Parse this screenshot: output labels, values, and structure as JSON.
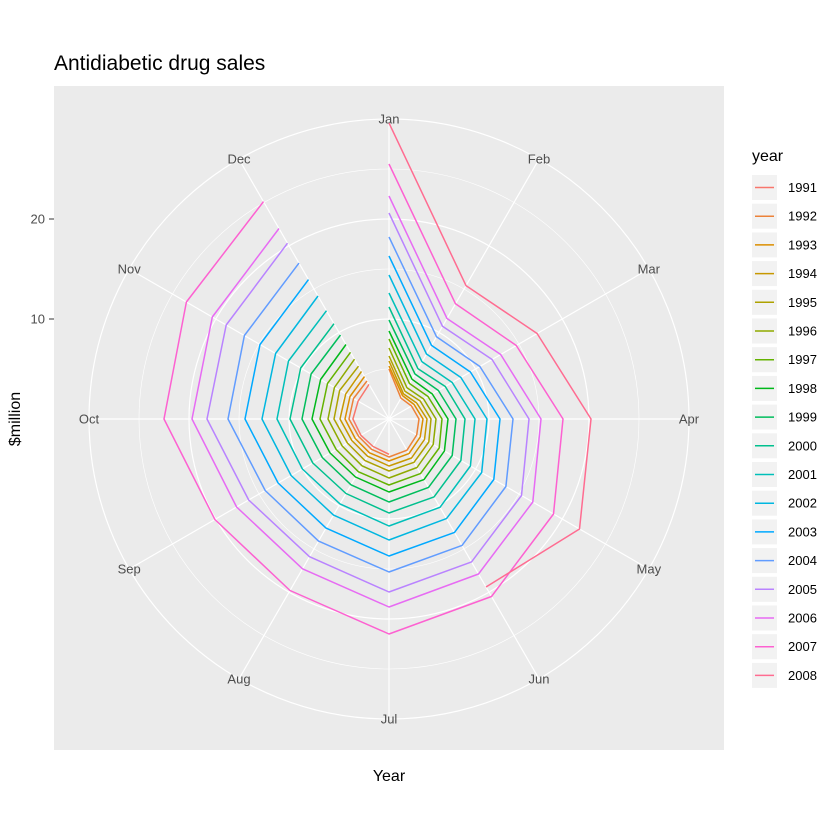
{
  "chart_data": {
    "type": "line",
    "coordinate_system": "polar",
    "title": "Antidiabetic drug sales",
    "xlabel": "Year",
    "ylabel": "$million",
    "categories": [
      "Jan",
      "Feb",
      "Mar",
      "Apr",
      "May",
      "Jun",
      "Jul",
      "Aug",
      "Sep",
      "Oct",
      "Nov",
      "Dec"
    ],
    "radial_ticks": [
      10,
      20
    ],
    "radial_range": [
      0,
      30
    ],
    "grid": true,
    "panel_background": "#ebebeb",
    "grid_color": "#ffffff",
    "legend": {
      "title": "year",
      "position": "right"
    },
    "series": [
      {
        "name": "1991",
        "color": "#F8766D",
        "values": [
          null,
          null,
          null,
          null,
          null,
          null,
          3.53,
          3.18,
          3.25,
          3.61,
          3.57,
          3.99
        ]
      },
      {
        "name": "1992",
        "color": "#EC8239",
        "values": [
          5.0,
          2.4,
          2.6,
          3.0,
          3.2,
          3.6,
          3.8,
          3.5,
          3.5,
          4.0,
          4.1,
          4.4
        ]
      },
      {
        "name": "1993",
        "color": "#DB8E00",
        "values": [
          5.3,
          2.7,
          2.9,
          3.4,
          3.6,
          4.0,
          4.2,
          3.9,
          3.9,
          4.4,
          4.5,
          4.9
        ]
      },
      {
        "name": "1994",
        "color": "#C79800",
        "values": [
          5.8,
          2.9,
          3.2,
          3.8,
          4.1,
          4.5,
          4.7,
          4.3,
          4.3,
          4.9,
          5.0,
          5.5
        ]
      },
      {
        "name": "1995",
        "color": "#AEA200",
        "values": [
          6.3,
          3.2,
          3.6,
          4.2,
          4.6,
          5.0,
          5.2,
          4.8,
          4.8,
          5.5,
          5.7,
          6.1
        ]
      },
      {
        "name": "1996",
        "color": "#8FAA00",
        "values": [
          7.1,
          3.6,
          4.0,
          4.7,
          5.1,
          5.6,
          5.9,
          5.4,
          5.4,
          6.1,
          6.3,
          6.9
        ]
      },
      {
        "name": "1997",
        "color": "#64B200",
        "values": [
          8.0,
          4.1,
          4.5,
          5.3,
          5.8,
          6.3,
          6.6,
          6.1,
          6.1,
          6.9,
          7.1,
          7.7
        ]
      },
      {
        "name": "1998",
        "color": "#00B81B",
        "values": [
          8.8,
          4.6,
          5.0,
          5.9,
          6.4,
          7.0,
          7.3,
          6.7,
          6.8,
          7.7,
          7.9,
          8.6
        ]
      },
      {
        "name": "1999",
        "color": "#00BD5C",
        "values": [
          9.9,
          5.2,
          5.7,
          6.7,
          7.3,
          7.9,
          8.3,
          7.6,
          7.7,
          8.7,
          9.0,
          9.7
        ]
      },
      {
        "name": "2000",
        "color": "#00C08E",
        "values": [
          11.2,
          5.8,
          6.5,
          7.6,
          8.3,
          9.0,
          9.4,
          8.6,
          8.8,
          9.9,
          10.2,
          11.0
        ]
      },
      {
        "name": "2001",
        "color": "#00BFB9",
        "values": [
          12.6,
          6.6,
          7.3,
          8.6,
          9.4,
          10.2,
          10.7,
          9.8,
          10.0,
          11.2,
          11.6,
          12.5
        ]
      },
      {
        "name": "2002",
        "color": "#00B7E0",
        "values": [
          14.4,
          7.5,
          8.3,
          9.8,
          10.7,
          11.5,
          12.1,
          11.1,
          11.3,
          12.7,
          13.1,
          14.2
        ]
      },
      {
        "name": "2003",
        "color": "#00A9FF",
        "values": [
          16.3,
          8.5,
          9.4,
          11.1,
          12.1,
          13.1,
          13.7,
          12.6,
          12.8,
          14.4,
          14.9,
          16.1
        ]
      },
      {
        "name": "2004",
        "color": "#619CFF",
        "values": [
          18.2,
          9.5,
          10.5,
          12.4,
          13.5,
          14.6,
          15.3,
          14.1,
          14.3,
          16.1,
          16.7,
          18.0
        ]
      },
      {
        "name": "2005",
        "color": "#B983FF",
        "values": [
          20.6,
          10.7,
          11.9,
          14.0,
          15.3,
          16.5,
          17.3,
          15.9,
          16.2,
          18.2,
          18.8,
          20.3
        ]
      },
      {
        "name": "2006",
        "color": "#E76BF3",
        "values": [
          22.3,
          11.6,
          12.9,
          15.2,
          16.6,
          17.9,
          18.8,
          17.3,
          17.6,
          19.7,
          20.4,
          22.0
        ]
      },
      {
        "name": "2007",
        "color": "#FD61D1",
        "values": [
          25.5,
          13.3,
          14.7,
          17.4,
          19.0,
          20.5,
          21.5,
          19.8,
          20.1,
          22.5,
          23.4,
          25.1
        ]
      },
      {
        "name": "2008",
        "color": "#FF6C91",
        "values": [
          29.6,
          15.4,
          17.1,
          20.2,
          22.0,
          19.4,
          null,
          null,
          null,
          null,
          null,
          null
        ]
      }
    ]
  }
}
